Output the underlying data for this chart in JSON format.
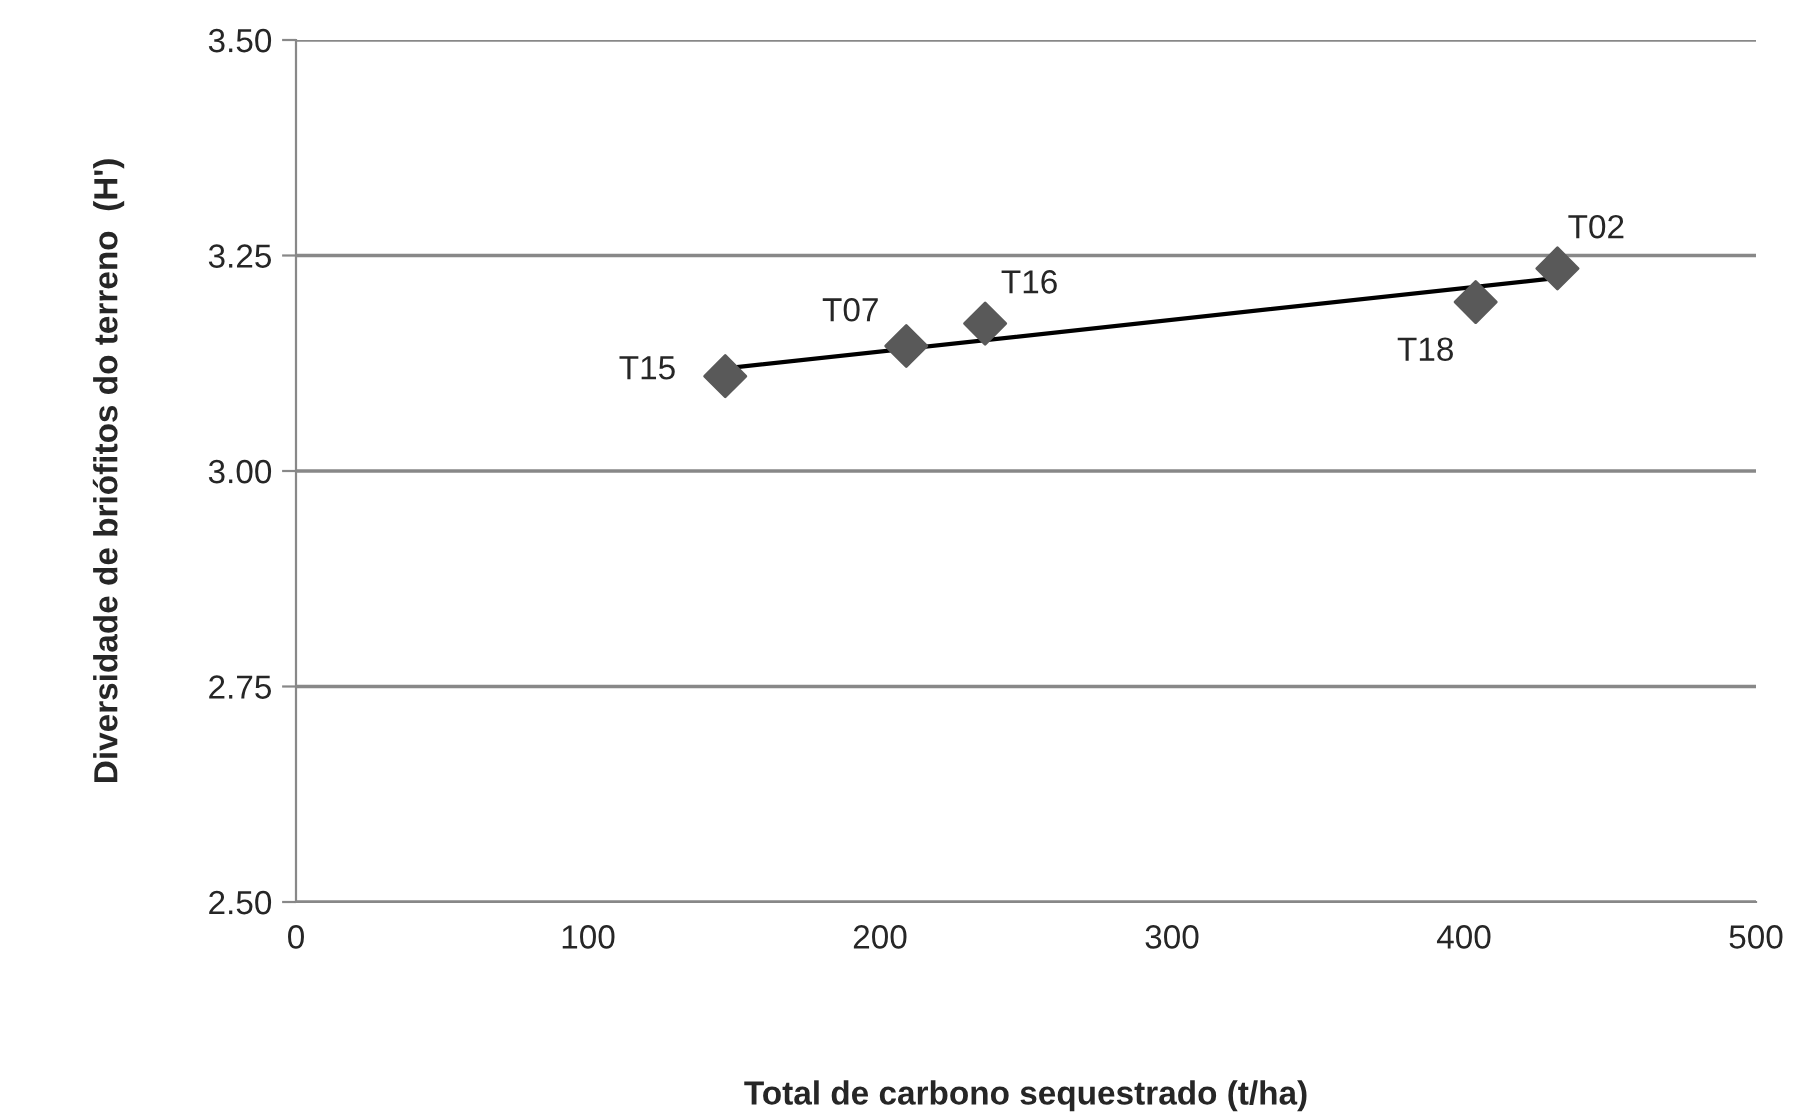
{
  "chart_data": {
    "type": "scatter",
    "xlabel": "Total de carbono sequestrado (t/ha)",
    "ylabel": "Diversidade de briófitos do terreno  (H')",
    "xlim": [
      0,
      500
    ],
    "xticks": [
      0,
      100,
      200,
      300,
      400,
      500
    ],
    "ylim": [
      2.5,
      3.5
    ],
    "yticks": [
      {
        "value": 2.5,
        "label": "2.50"
      },
      {
        "value": 2.75,
        "label": "2.75"
      },
      {
        "value": 3.0,
        "label": "3.00"
      },
      {
        "value": 3.25,
        "label": "3.25"
      },
      {
        "value": 3.5,
        "label": "3.50"
      }
    ],
    "grid": "y",
    "marker": "diamond",
    "legend": false,
    "series": [
      {
        "color": "#595959",
        "x": [
          147,
          209,
          236,
          404,
          432
        ],
        "values": [
          3.11,
          3.145,
          3.171,
          3.196,
          3.235
        ]
      },
      {
        "type": "line",
        "marker": "none",
        "color": "#000000",
        "x": [
          147,
          432
        ],
        "values": [
          3.119,
          3.224
        ]
      }
    ],
    "annotations": [
      {
        "text": "T15",
        "x": 147,
        "y": 3.11
      },
      {
        "text": "T07",
        "x": 209,
        "y": 3.145
      },
      {
        "text": "T16",
        "x": 236,
        "y": 3.171
      },
      {
        "text": "T18",
        "x": 404,
        "y": 3.196
      },
      {
        "text": "T02",
        "x": 432,
        "y": 3.235
      }
    ]
  }
}
